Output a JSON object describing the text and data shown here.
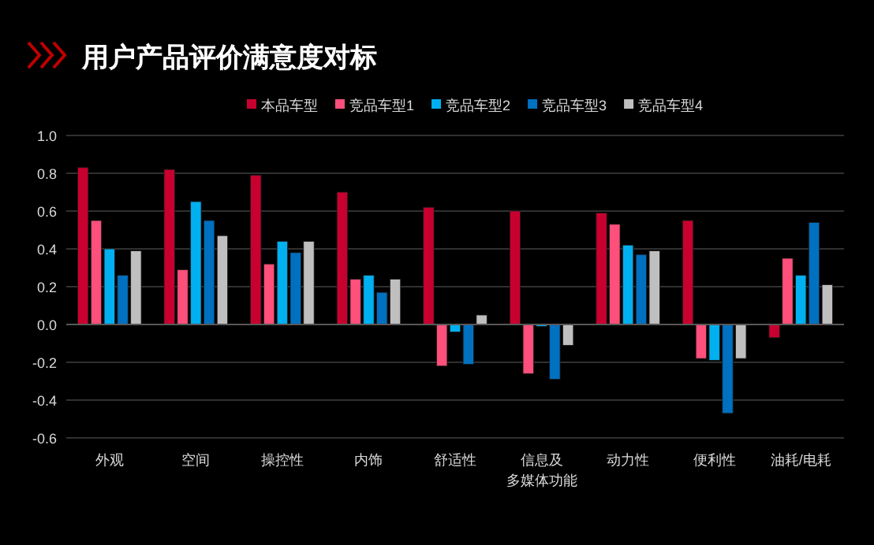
{
  "chart_data": {
    "type": "bar",
    "title": "用户产品评价满意度对标",
    "categories": [
      "外观",
      "空间",
      "操控性",
      "内饰",
      "舒适性",
      "信息及多媒体功能",
      "动力性",
      "便利性",
      "油耗/电耗"
    ],
    "series": [
      {
        "name": "本品车型",
        "color": "#c8002f",
        "values": [
          0.83,
          0.82,
          0.79,
          0.7,
          0.62,
          0.6,
          0.59,
          0.55,
          -0.07
        ]
      },
      {
        "name": "竞品车型1",
        "color": "#ff4f7b",
        "values": [
          0.55,
          0.29,
          0.32,
          0.24,
          -0.22,
          -0.26,
          0.53,
          -0.18,
          0.35
        ]
      },
      {
        "name": "竞品车型2",
        "color": "#00b0f0",
        "values": [
          0.4,
          0.65,
          0.44,
          0.26,
          -0.04,
          -0.01,
          0.42,
          -0.19,
          0.26
        ]
      },
      {
        "name": "竞品车型3",
        "color": "#0070c0",
        "values": [
          0.26,
          0.55,
          0.38,
          0.17,
          -0.21,
          -0.29,
          0.37,
          -0.47,
          0.54
        ]
      },
      {
        "name": "竞品车型4",
        "color": "#bfbfbf",
        "values": [
          0.39,
          0.47,
          0.44,
          0.24,
          0.05,
          -0.11,
          0.39,
          -0.18,
          0.21
        ]
      }
    ],
    "ylim": [
      -0.6,
      1.0
    ],
    "yticks": [
      {
        "value": -0.6,
        "label": "-0.6"
      },
      {
        "value": -0.4,
        "label": "-0.4"
      },
      {
        "value": -0.2,
        "label": "-0.2"
      },
      {
        "value": 0,
        "label": "0.0"
      },
      {
        "value": 0.2,
        "label": "0.2"
      },
      {
        "value": 0.4,
        "label": "0.4"
      },
      {
        "value": 0.6,
        "label": "0.6"
      },
      {
        "value": 0.8,
        "label": "0.8"
      },
      {
        "value": 1.0,
        "label": "1.0"
      }
    ],
    "grid": "y",
    "legend": "top"
  }
}
